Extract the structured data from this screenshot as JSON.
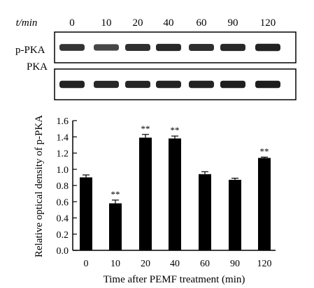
{
  "western_blot": {
    "time_axis_label": "t/min",
    "time_points": [
      "0",
      "10",
      "20",
      "40",
      "60",
      "90",
      "120"
    ],
    "rows": [
      {
        "label": "p-PKA",
        "band_intensity": [
          0.7,
          0.55,
          0.75,
          0.8,
          0.75,
          0.8,
          0.85
        ]
      },
      {
        "label": "PKA",
        "band_intensity": [
          0.85,
          0.8,
          0.82,
          0.85,
          0.85,
          0.88,
          0.9
        ]
      }
    ]
  },
  "chart_data": {
    "type": "bar",
    "categories": [
      "0",
      "10",
      "20",
      "40",
      "60",
      "90",
      "120"
    ],
    "values": [
      0.9,
      0.58,
      1.39,
      1.38,
      0.94,
      0.87,
      1.14
    ],
    "errors": [
      0.03,
      0.04,
      0.04,
      0.03,
      0.03,
      0.02,
      0.01
    ],
    "significance": [
      "",
      "**",
      "**",
      "**",
      "",
      "",
      "**"
    ],
    "ylabel": "Relative optical density of p-PKA",
    "xlabel": "Time after PEMF treatment (min)",
    "ylim": [
      0.0,
      1.6
    ],
    "yticks": [
      "0.0",
      "0.2",
      "0.4",
      "0.6",
      "0.8",
      "1.0",
      "1.2",
      "1.4",
      "1.6"
    ],
    "grid": false,
    "bar_color": "#000000"
  }
}
